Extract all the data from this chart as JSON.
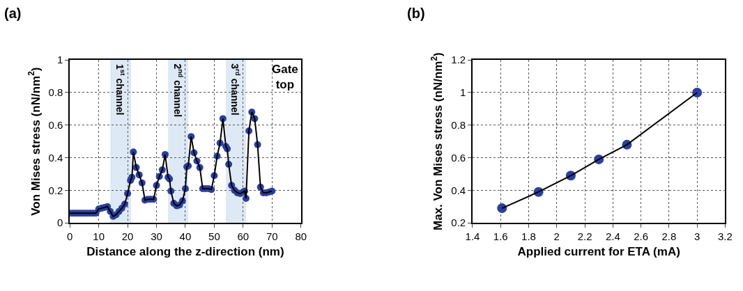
{
  "chart_data": [
    {
      "type": "line",
      "title": "(a)",
      "xlabel": "Distance along the z-direction (nm)",
      "ylabel": "Von Mises stress (nN/nm$^{2}$)",
      "x": [
        0,
        1,
        2,
        3,
        4,
        5,
        6,
        7,
        8,
        9,
        10,
        11,
        12,
        13,
        14,
        15,
        16,
        17,
        18,
        19,
        20,
        21,
        21.5,
        22,
        23,
        24,
        25,
        26,
        27,
        28,
        29,
        30,
        31,
        32,
        33,
        34,
        34.5,
        35,
        36,
        37,
        38,
        39,
        40,
        40.5,
        41,
        42,
        43,
        44,
        45,
        46,
        47,
        48,
        49,
        50,
        51,
        52,
        53,
        54,
        54.5,
        55,
        56,
        57,
        58,
        59,
        60,
        60.5,
        61,
        62,
        63,
        64,
        65,
        66,
        67,
        68,
        69,
        70
      ],
      "series": [
        {
          "color": "#2b3f9e",
          "marker": "circle",
          "values": [
            0.06,
            0.06,
            0.06,
            0.06,
            0.06,
            0.06,
            0.06,
            0.06,
            0.06,
            0.06,
            0.085,
            0.09,
            0.095,
            0.1,
            0.07,
            0.04,
            0.05,
            0.07,
            0.09,
            0.115,
            0.18,
            0.26,
            0.28,
            0.435,
            0.34,
            0.295,
            0.245,
            0.14,
            0.145,
            0.145,
            0.145,
            0.23,
            0.285,
            0.325,
            0.42,
            0.28,
            0.27,
            0.195,
            0.12,
            0.105,
            0.11,
            0.135,
            0.21,
            0.345,
            0.35,
            0.53,
            0.43,
            0.38,
            0.34,
            0.21,
            0.21,
            0.21,
            0.205,
            0.29,
            0.41,
            0.49,
            0.64,
            0.47,
            0.455,
            0.36,
            0.23,
            0.2,
            0.185,
            0.18,
            0.19,
            0.195,
            0.15,
            0.565,
            0.68,
            0.64,
            0.48,
            0.22,
            0.185,
            0.185,
            0.19,
            0.195
          ]
        }
      ],
      "xlim": [
        0,
        80
      ],
      "ylim": [
        0,
        1
      ],
      "xticks": [
        0,
        10,
        20,
        30,
        40,
        50,
        60,
        70,
        80
      ],
      "yticks": [
        0,
        0.2,
        0.4,
        0.6,
        0.8,
        1
      ],
      "grid": true,
      "line_style": "solid",
      "bands": [
        {
          "axis": "x",
          "from": 14,
          "to": 21.2,
          "label": "1$^{st}$ channel",
          "color": "#dde9f5"
        },
        {
          "axis": "x",
          "from": 34,
          "to": 41,
          "label": "2$^{nd}$ channel",
          "color": "#dde9f5"
        },
        {
          "axis": "x",
          "from": 54,
          "to": 61,
          "label": "3$^{rd}$ channel",
          "color": "#dde9f5"
        }
      ],
      "annotations": [
        "Gate\ntop"
      ]
    },
    {
      "type": "line",
      "title": "(b)",
      "xlabel": "Applied current for ETA (mA)",
      "ylabel": "Max. Von Mises stress (nN/nm$^{2}$)",
      "x": [
        1.61,
        1.87,
        2.1,
        2.3,
        2.5,
        3.0
      ],
      "series": [
        {
          "color": "#2b3f9e",
          "marker": "circle",
          "values": [
            0.29,
            0.39,
            0.49,
            0.59,
            0.68,
            1.0
          ]
        }
      ],
      "xlim": [
        1.4,
        3.2
      ],
      "ylim": [
        0.2,
        1.2
      ],
      "xticks": [
        1.4,
        1.6,
        1.8,
        2,
        2.2,
        2.4,
        2.6,
        2.8,
        3,
        3.2
      ],
      "yticks": [
        0.2,
        0.4,
        0.6,
        0.8,
        1,
        1.2
      ],
      "grid": true,
      "line_style": "solid"
    }
  ]
}
